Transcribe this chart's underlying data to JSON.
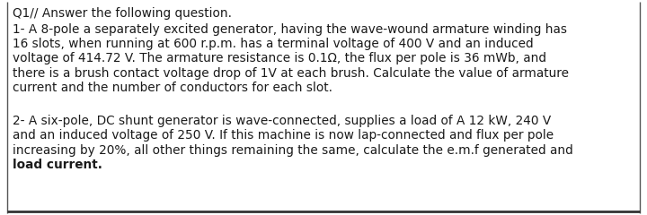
{
  "background_color": "#ffffff",
  "border_left_color": "#555555",
  "border_bottom_color": "#333333",
  "text_color": "#1a1a1a",
  "title": "Q1// Answer the following question.",
  "para1_lines": [
    "1- A 8-pole a separately excited generator, having the wave-wound armature winding has",
    "16 slots, when running at 600 r.p.m. has a terminal voltage of 400 V and an induced",
    "voltage of 414.72 V. The armature resistance is 0.1Ω, the flux per pole is 36 mWb, and",
    "there is a brush contact voltage drop of 1V at each brush. Calculate the value of armature",
    "current and the number of conductors for each slot."
  ],
  "para2_lines": [
    "2- A six-pole, DC shunt generator is wave-connected, supplies a load of A 12 kW, 240 V",
    "and an induced voltage of 250 V. If this machine is now lap-connected and flux per pole",
    "increasing by 20%, all other things remaining the same, calculate the e.m.f generated and",
    "load current."
  ],
  "para2_last_bold": "load current.",
  "font_size": 9.8,
  "font_family": "DejaVu Sans"
}
